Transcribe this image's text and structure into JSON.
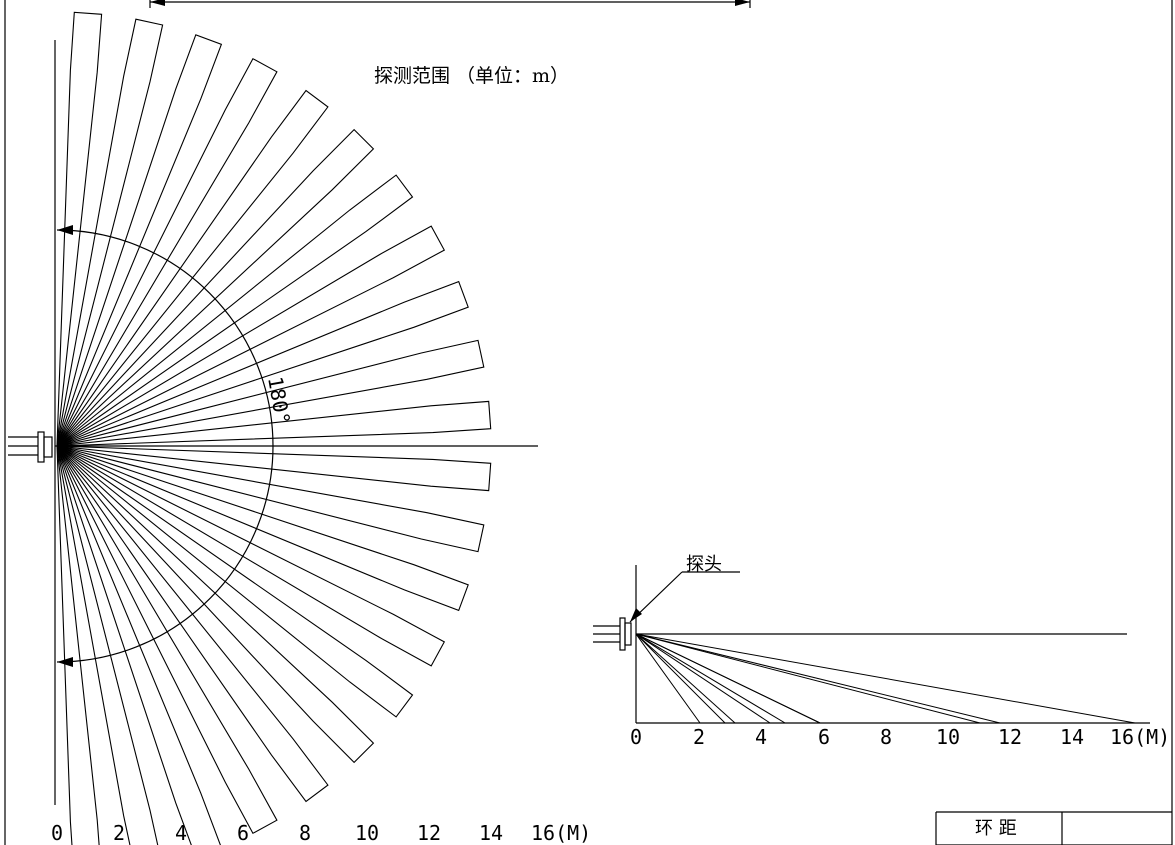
{
  "top_view": {
    "title": "探测范围 （单位：m）",
    "angle_label": "180°",
    "axis_ticks": [
      "0",
      "2",
      "4",
      "6",
      "8",
      "10",
      "12",
      "14",
      "16(M)"
    ]
  },
  "side_view": {
    "probe_label": "探头",
    "axis_ticks": [
      "0",
      "2",
      "4",
      "6",
      "8",
      "10",
      "12",
      "14",
      "16(M)"
    ]
  },
  "table": {
    "header": "环 距"
  }
}
